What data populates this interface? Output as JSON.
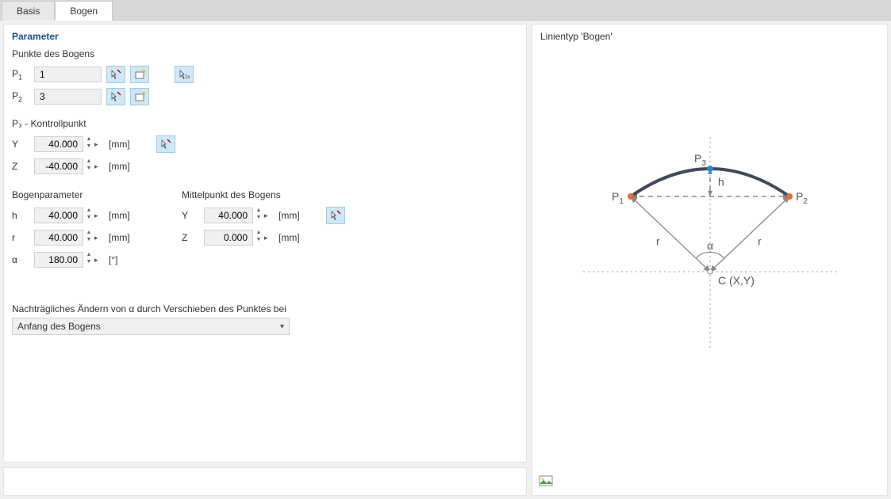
{
  "tabs": {
    "basis": "Basis",
    "bogen": "Bogen"
  },
  "panel_title": "Parameter",
  "points_section": "Punkte des Bogens",
  "p1_label": "P",
  "p1_sub": "1",
  "p1_value": "1",
  "p2_label": "P",
  "p2_sub": "2",
  "p2_value": "3",
  "p3_section": "P₃ - Kontrollpunkt",
  "y_label": "Y",
  "z_label": "Z",
  "p3_y_value": "40.000",
  "p3_z_value": "-40.000",
  "unit_mm": "[mm]",
  "unit_deg": "[°]",
  "arc_params_head": "Bogenparameter",
  "center_head": "Mittelpunkt des Bogens",
  "h_label": "h",
  "h_value": "40.000",
  "r_label": "r",
  "r_value": "40.000",
  "alpha_label": "α",
  "alpha_value": "180.00",
  "center_y_value": "40.000",
  "center_z_value": "0.000",
  "shift_label": "Nachträgliches Ändern von α durch Verschieben des Punktes bei",
  "dropdown_value": "Anfang des Bogens",
  "right_title": "Linientyp 'Bogen'",
  "diagram": {
    "p1_label": "P",
    "p1_sub": "1",
    "p2_label": "P",
    "p2_sub": "2",
    "p3_label": "P",
    "p3_sub": "3",
    "h_label": "h",
    "r_label": "r",
    "alpha_label": "α",
    "center_label": "C (X,Y)",
    "colors": {
      "arc": "#3f4a5a",
      "dashed": "#888",
      "dotted": "#bdbdbd",
      "p1p2_marker": "#e86c2a",
      "p3_marker": "#2b89d6",
      "text": "#555"
    }
  }
}
